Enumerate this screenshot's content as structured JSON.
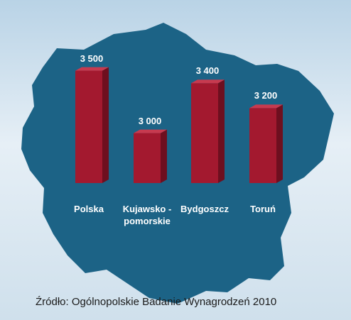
{
  "chart_data": {
    "type": "bar",
    "categories": [
      "Polska",
      "Kujawsko -pomorskie",
      "Bydgoszcz",
      "Toruń"
    ],
    "values": [
      3500,
      3000,
      3400,
      3200
    ],
    "value_labels": [
      "3 500",
      "3 000",
      "3 400",
      "3 200"
    ],
    "color": "#a3192f",
    "ylim": [
      2600,
      3600
    ],
    "source": "Źródło: Ogólnopolskie Badanie Wynagrodzeń 2010"
  }
}
